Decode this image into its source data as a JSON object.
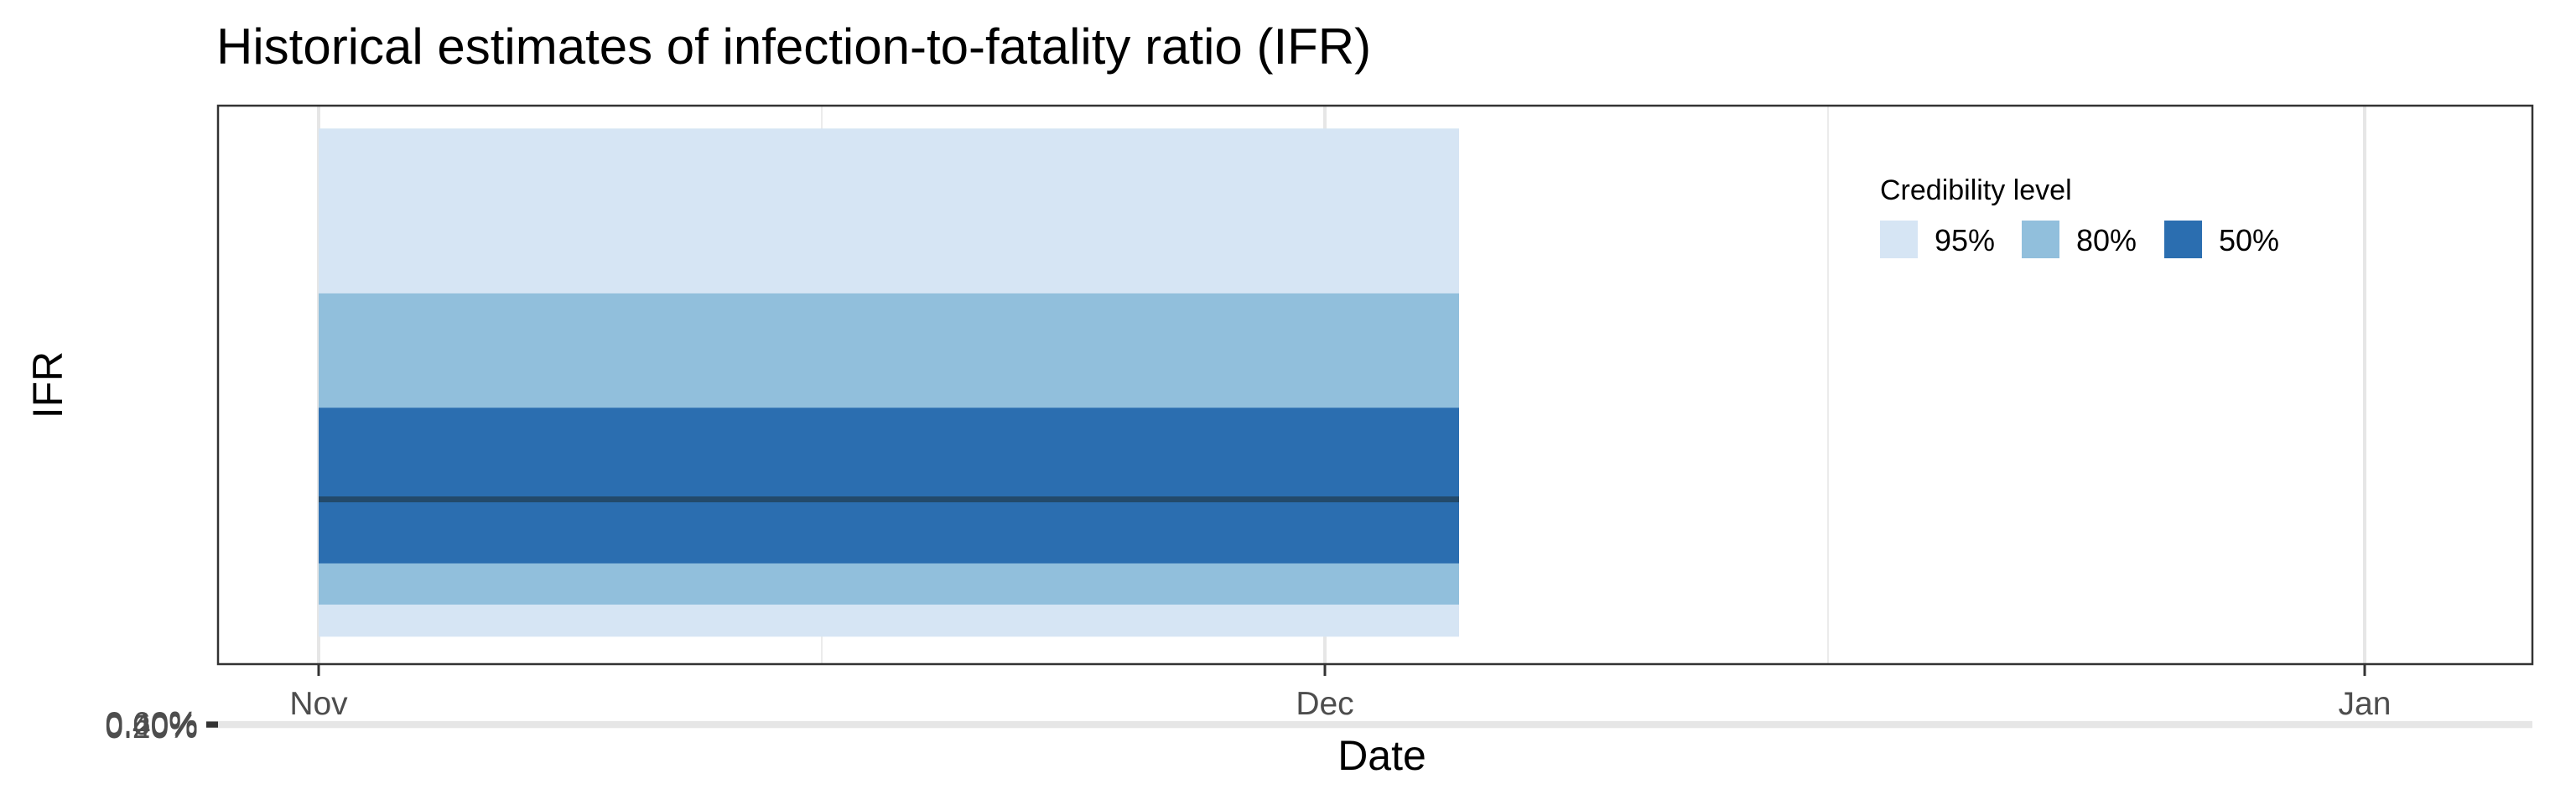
{
  "chart_data": {
    "type": "area",
    "title": "Historical estimates of infection-to-fatality ratio (IFR)",
    "xlabel": "Date",
    "ylabel": "IFR",
    "x_ticks": [
      "Nov",
      "Dec",
      "Jan"
    ],
    "y_ticks": [
      "0.20%",
      "0.40%",
      "0.60%"
    ],
    "x_range": [
      "2020-11-01",
      "2021-01-01"
    ],
    "xlim": [
      "2020-10-29",
      "2021-01-06"
    ],
    "ylim": [
      0.07,
      0.68
    ],
    "grid": true,
    "legend_position": "top-right",
    "legend": {
      "title": "Credibility level",
      "items": [
        {
          "label": "95%",
          "color": "#d6e5f4"
        },
        {
          "label": "80%",
          "color": "#91bfdc"
        },
        {
          "label": "50%",
          "color": "#2b6eb0"
        }
      ]
    },
    "series": [
      {
        "name": "95%",
        "x": [
          "2020-11-01",
          "2020-12-05"
        ],
        "lower": [
          0.1,
          0.1
        ],
        "upper": [
          0.655,
          0.655
        ],
        "color": "#d6e5f4"
      },
      {
        "name": "80%",
        "x": [
          "2020-11-01",
          "2020-12-05"
        ],
        "lower": [
          0.135,
          0.135
        ],
        "upper": [
          0.475,
          0.475
        ],
        "color": "#91bfdc"
      },
      {
        "name": "50%",
        "x": [
          "2020-11-01",
          "2020-12-05"
        ],
        "lower": [
          0.18,
          0.18
        ],
        "upper": [
          0.35,
          0.35
        ],
        "color": "#2b6eb0"
      }
    ],
    "median": {
      "x": [
        "2020-11-01",
        "2020-12-05"
      ],
      "y": [
        0.25,
        0.25
      ],
      "color": "#234a6b"
    }
  }
}
